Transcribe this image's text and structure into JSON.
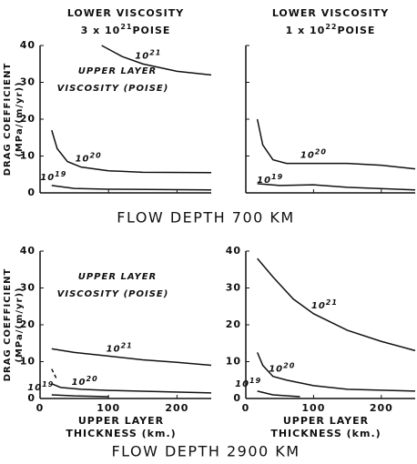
{
  "row_titles": [
    "FLOW DEPTH 700 KM",
    "FLOW DEPTH 2900 KM"
  ],
  "chart_data": [
    {
      "type": "line",
      "title": "LOWER VISCOSITY",
      "subtitle": [
        "3 x 10",
        "21",
        "POISE"
      ],
      "ylabel": [
        "DRAG COEFFICIENT",
        "(MPa/(m/yr))"
      ],
      "annotation": [
        "UPPER LAYER",
        "VISCOSITY (POISE)"
      ],
      "xlim": [
        0,
        250
      ],
      "ylim": [
        0,
        40
      ],
      "xticks": [
        0,
        100,
        200
      ],
      "yticks": [
        0,
        10,
        20,
        30,
        40
      ],
      "xtick_labels": false,
      "ytick_labels": true,
      "series": [
        {
          "name": [
            "10",
            "21"
          ],
          "x": [
            90,
            120,
            150,
            200,
            250
          ],
          "values": [
            40,
            37,
            35,
            33,
            32
          ]
        },
        {
          "name": [
            "10",
            "20"
          ],
          "x": [
            17,
            25,
            40,
            60,
            100,
            150,
            250
          ],
          "values": [
            17,
            12,
            8.5,
            7,
            6,
            5.6,
            5.5
          ]
        },
        {
          "name": [
            "10",
            "19"
          ],
          "x": [
            17,
            50,
            100,
            250
          ],
          "values": [
            2,
            1.2,
            1,
            0.8
          ]
        }
      ]
    },
    {
      "type": "line",
      "title": "LOWER VISCOSITY",
      "subtitle": [
        "1 x 10",
        "22",
        "POISE"
      ],
      "xlim": [
        0,
        250
      ],
      "ylim": [
        0,
        40
      ],
      "xticks": [
        0,
        100,
        200
      ],
      "yticks": [
        0,
        10,
        20,
        30,
        40
      ],
      "xtick_labels": false,
      "ytick_labels": false,
      "series": [
        {
          "name": [
            "10",
            "20"
          ],
          "x": [
            17,
            25,
            40,
            60,
            100,
            150,
            200,
            250
          ],
          "values": [
            20,
            13,
            9,
            8,
            8,
            8,
            7.5,
            6.5
          ]
        },
        {
          "name": [
            "10",
            "19"
          ],
          "x": [
            17,
            50,
            100,
            150,
            250
          ],
          "values": [
            2.5,
            2,
            2.2,
            1.5,
            0.8
          ]
        }
      ]
    },
    {
      "type": "line",
      "ylabel": [
        "DRAG COEFFICIENT",
        "(MPa/(m/yr))"
      ],
      "annotation": [
        "UPPER LAYER",
        "VISCOSITY (POISE)"
      ],
      "xlabel": [
        "UPPER LAYER",
        "THICKNESS (km.)"
      ],
      "xlim": [
        0,
        250
      ],
      "ylim": [
        0,
        40
      ],
      "xticks": [
        0,
        100,
        200
      ],
      "yticks": [
        0,
        10,
        20,
        30,
        40
      ],
      "xtick_labels": true,
      "ytick_labels": true,
      "series": [
        {
          "name": [
            "10",
            "21"
          ],
          "x": [
            17,
            50,
            100,
            150,
            200,
            250
          ],
          "values": [
            13.5,
            12.5,
            11.5,
            10.5,
            9.8,
            9
          ]
        },
        {
          "name": [
            "10",
            "20"
          ],
          "x": [
            17,
            30,
            60,
            100,
            250
          ],
          "values": [
            4,
            3,
            2.5,
            2.2,
            1.5
          ]
        },
        {
          "x": [
            17,
            25
          ],
          "values": [
            8,
            5
          ],
          "dashed": true
        },
        {
          "name": [
            "10",
            "19"
          ],
          "x": [
            17,
            50,
            100
          ],
          "values": [
            1,
            0.7,
            0.5
          ]
        }
      ]
    },
    {
      "type": "line",
      "xlabel": [
        "UPPER LAYER",
        "THICKNESS (km.)"
      ],
      "xlim": [
        0,
        250
      ],
      "ylim": [
        0,
        40
      ],
      "xticks": [
        0,
        100,
        200
      ],
      "yticks": [
        0,
        10,
        20,
        30,
        40
      ],
      "xtick_labels": true,
      "ytick_labels": true,
      "series": [
        {
          "name": [
            "10",
            "21"
          ],
          "x": [
            17,
            40,
            70,
            100,
            150,
            200,
            250
          ],
          "values": [
            38,
            33,
            27,
            23,
            18.5,
            15.5,
            13
          ]
        },
        {
          "name": [
            "10",
            "20"
          ],
          "x": [
            17,
            25,
            40,
            60,
            100,
            150,
            250
          ],
          "values": [
            12.5,
            9,
            6,
            5,
            3.5,
            2.5,
            2
          ]
        },
        {
          "name": [
            "10",
            "19"
          ],
          "x": [
            17,
            40,
            80
          ],
          "values": [
            2,
            1,
            0.5
          ]
        }
      ]
    }
  ]
}
